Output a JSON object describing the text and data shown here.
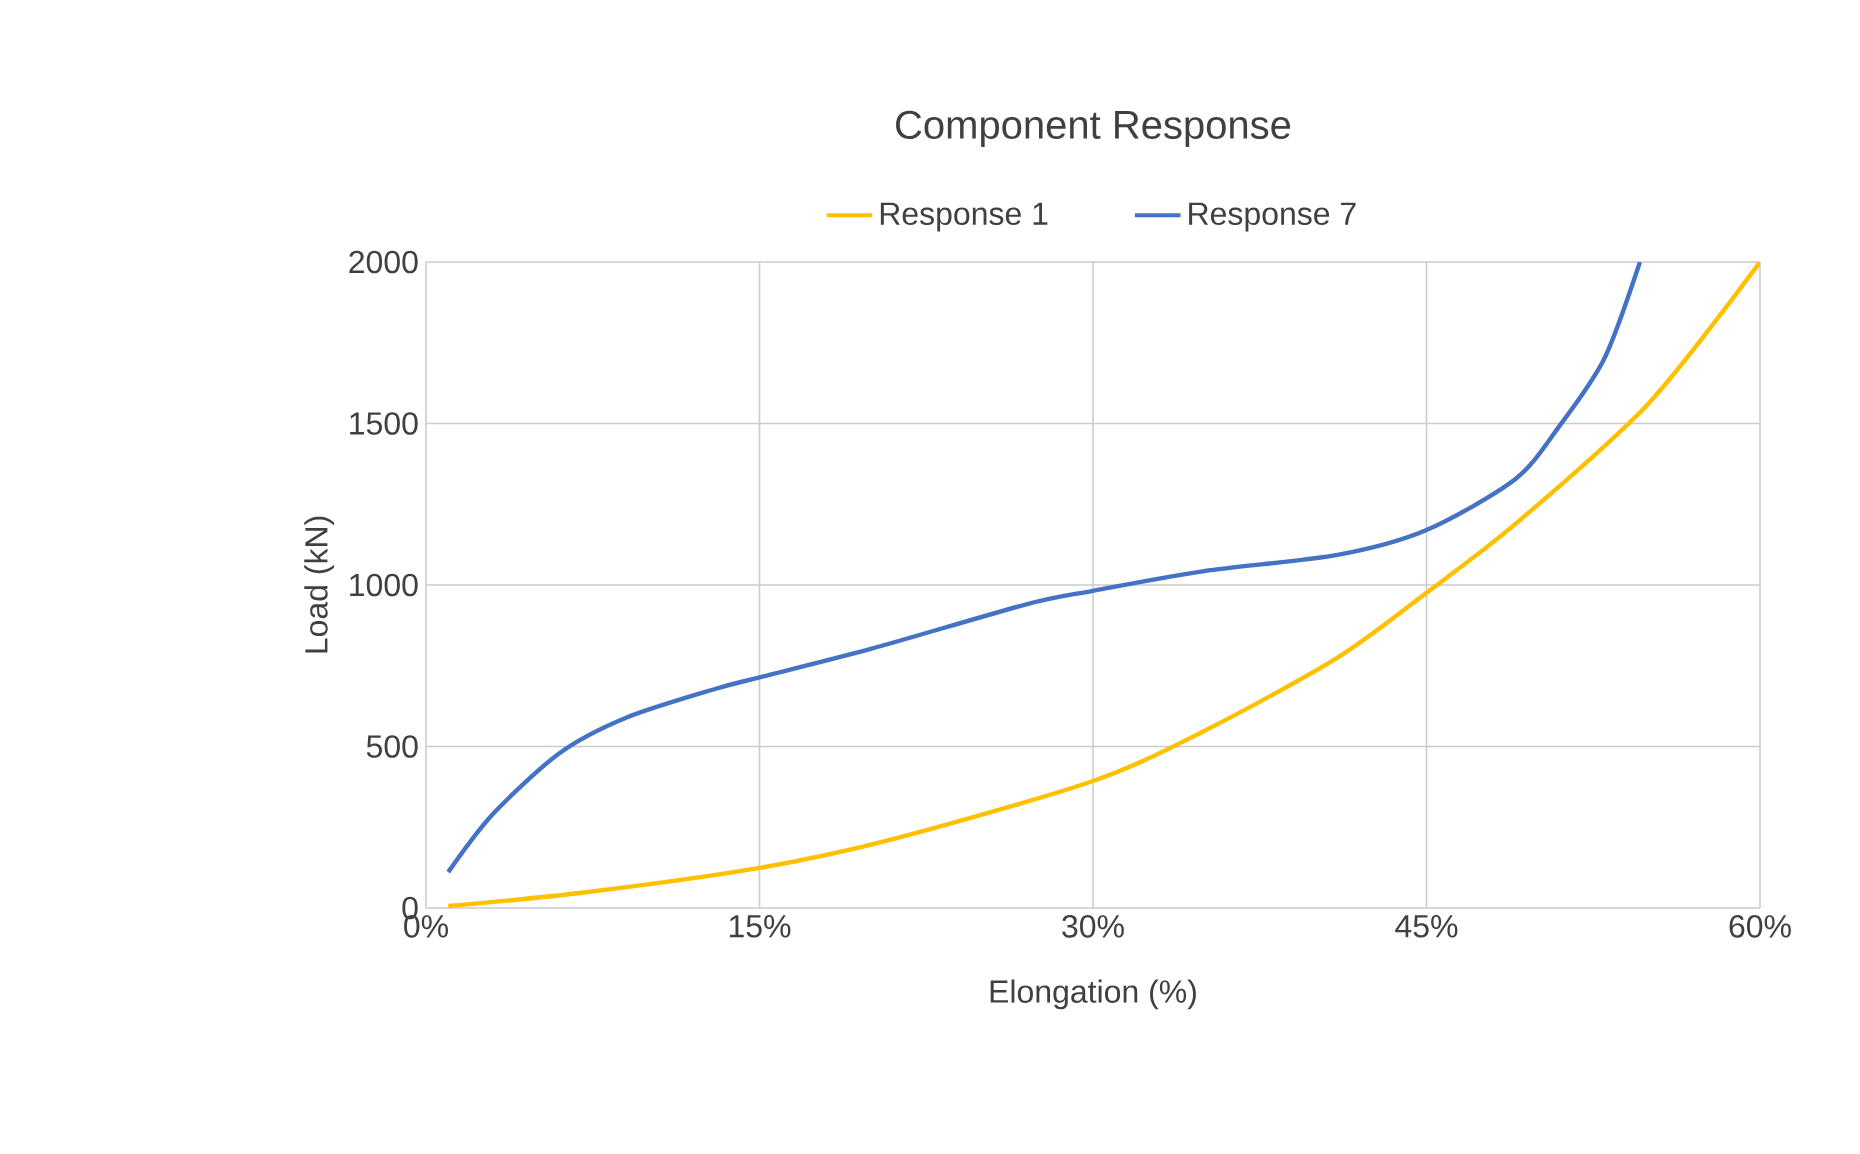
{
  "chart_data": {
    "type": "line",
    "title": "Component Response",
    "xlabel": "Elongation (%)",
    "ylabel": "Load (kN)",
    "xlim": [
      0,
      60
    ],
    "ylim": [
      0,
      2000
    ],
    "xticks": [
      {
        "value": 0,
        "label": "0%"
      },
      {
        "value": 15,
        "label": "15%"
      },
      {
        "value": 30,
        "label": "30%"
      },
      {
        "value": 45,
        "label": "45%"
      },
      {
        "value": 60,
        "label": "60%"
      }
    ],
    "yticks": [
      0,
      500,
      1000,
      1500,
      2000
    ],
    "grid": true,
    "legend": "top",
    "marker": "none",
    "line_style": "solid",
    "series": [
      {
        "name": "Response 1",
        "color": "#ffc000",
        "x": [
          1,
          7,
          15,
          21,
          30,
          35,
          41,
          45,
          49,
          55,
          60
        ],
        "values": [
          6,
          47,
          124,
          213,
          393,
          548,
          775,
          976,
          1189,
          1563,
          2000
        ]
      },
      {
        "name": "Response 7",
        "color": "#4472c4",
        "x": [
          1,
          3,
          6,
          9,
          13,
          15,
          20,
          27,
          30,
          35,
          41,
          45,
          49,
          51,
          53,
          54.6
        ],
        "values": [
          111,
          290,
          479,
          589,
          678,
          714,
          802,
          940,
          982,
          1043,
          1093,
          1170,
          1328,
          1494,
          1701,
          2000
        ]
      }
    ]
  }
}
